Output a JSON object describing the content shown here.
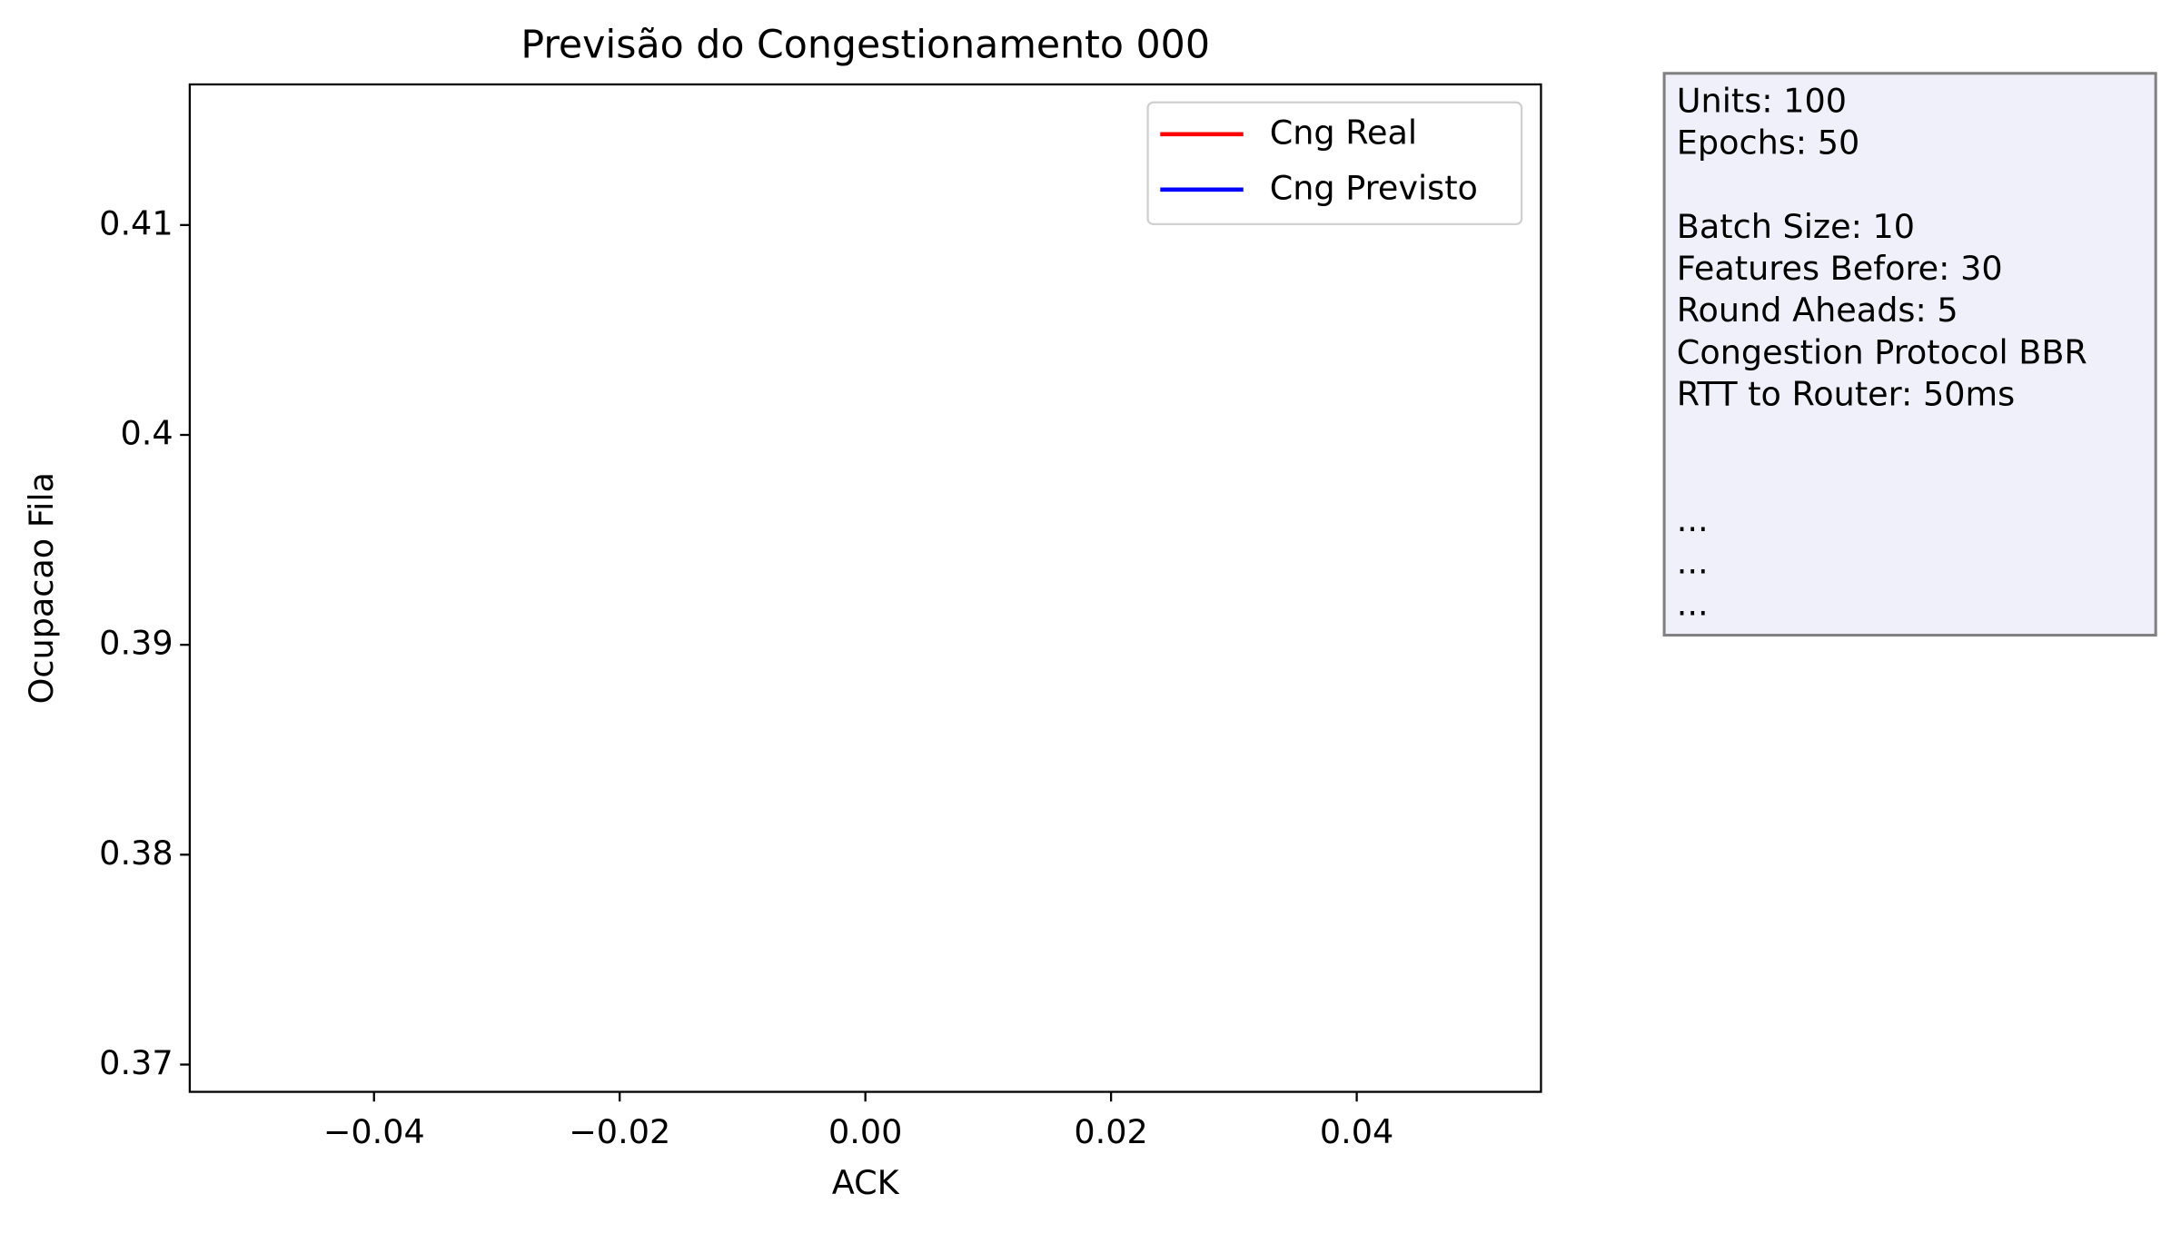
{
  "chart_data": {
    "type": "line",
    "title": "Previsão do Congestionamento 000",
    "xlabel": "ACK",
    "ylabel": "Ocupacao Fila",
    "x": [],
    "series": [
      {
        "name": "Cng Real",
        "color": "#ff0000",
        "values": []
      },
      {
        "name": "Cng Previsto",
        "color": "#0000ff",
        "values": []
      }
    ],
    "xlim": [
      -0.055,
      0.055
    ],
    "xticks": [
      {
        "value": -0.04,
        "label": "−0.04"
      },
      {
        "value": -0.02,
        "label": "−0.02"
      },
      {
        "value": 0,
        "label": "0.00"
      },
      0.02,
      0.04
    ],
    "ylim": [
      0.3687,
      0.4167
    ],
    "yticks": [
      0.37,
      0.38,
      0.39,
      0.4,
      0.41
    ],
    "legend": "upper right",
    "grid": false,
    "text_box": [
      [
        "Units: 100",
        "Epochs: 50"
      ],
      [
        "Batch Size: 10",
        "Features Before: 30",
        "Round Aheads: 5",
        "Congestion Protocol BBR",
        "RTT to Router: 50ms"
      ],
      [
        "...",
        "...",
        "..."
      ]
    ]
  }
}
